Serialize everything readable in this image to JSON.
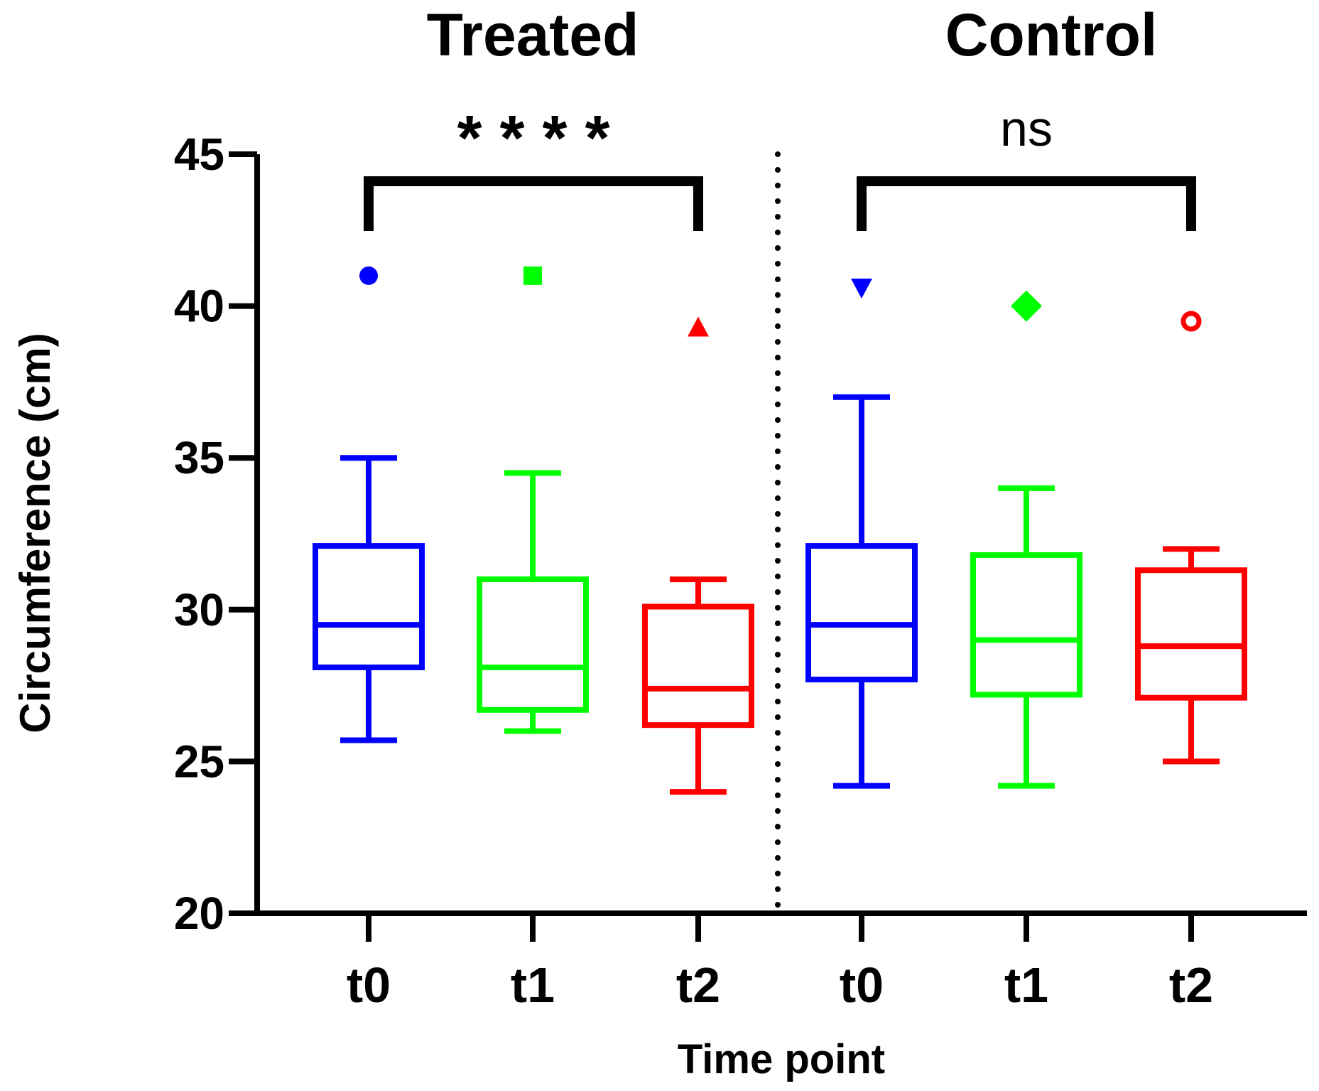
{
  "chart_data": {
    "type": "box",
    "ylabel": "Circumference (cm)",
    "xlabel": "Time point",
    "ylim": [
      20,
      45
    ],
    "yticks": [
      "20",
      "25",
      "30",
      "35",
      "40",
      "45"
    ],
    "groups": [
      {
        "title": "Treated",
        "significance": "* * * *",
        "boxes": [
          {
            "label": "t0",
            "color": "#0000ff",
            "min": 25.7,
            "q1": 28.1,
            "median": 29.5,
            "q3": 32.1,
            "max": 35.0,
            "outlier": 41.0,
            "marker": "circle"
          },
          {
            "label": "t1",
            "color": "#00ff00",
            "min": 26.0,
            "q1": 26.7,
            "median": 28.1,
            "q3": 31.0,
            "max": 34.5,
            "outlier": 41.0,
            "marker": "square"
          },
          {
            "label": "t2",
            "color": "#ff0000",
            "min": 24.0,
            "q1": 26.2,
            "median": 27.4,
            "q3": 30.1,
            "max": 31.0,
            "outlier": 39.3,
            "marker": "triangle-up"
          }
        ]
      },
      {
        "title": "Control",
        "significance": "ns",
        "boxes": [
          {
            "label": "t0",
            "color": "#0000ff",
            "min": 24.2,
            "q1": 27.7,
            "median": 29.5,
            "q3": 32.1,
            "max": 37.0,
            "outlier": 40.6,
            "marker": "triangle-down"
          },
          {
            "label": "t1",
            "color": "#00ff00",
            "min": 24.2,
            "q1": 27.2,
            "median": 29.0,
            "q3": 31.8,
            "max": 34.0,
            "outlier": 40.0,
            "marker": "diamond"
          },
          {
            "label": "t2",
            "color": "#ff0000",
            "min": 25.0,
            "q1": 27.1,
            "median": 28.8,
            "q3": 31.3,
            "max": 32.0,
            "outlier": 39.5,
            "marker": "open-circle"
          }
        ]
      }
    ],
    "separator": "dotted",
    "grid": false
  }
}
